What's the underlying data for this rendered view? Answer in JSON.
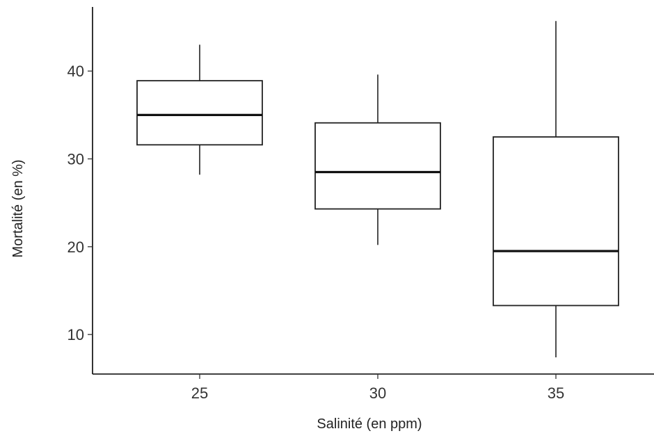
{
  "chart_data": {
    "type": "boxplot",
    "title": "",
    "xlabel": "Salinité (en ppm)",
    "ylabel": "Mortalité (en %)",
    "categories": [
      "25",
      "30",
      "35"
    ],
    "ylim": [
      5.5,
      47.3
    ],
    "yticks": [
      10,
      20,
      30,
      40
    ],
    "grid": false,
    "boxes": [
      {
        "category": "25",
        "whisker_low": 28.2,
        "q1": 31.6,
        "median": 35.0,
        "q3": 38.9,
        "whisker_high": 43.0
      },
      {
        "category": "30",
        "whisker_low": 20.2,
        "q1": 24.3,
        "median": 28.5,
        "q3": 34.1,
        "whisker_high": 39.6
      },
      {
        "category": "35",
        "whisker_low": 7.4,
        "q1": 13.3,
        "median": 19.5,
        "q3": 32.5,
        "whisker_high": 45.7
      }
    ],
    "colors": {
      "box_fill": "#ffffff",
      "box_stroke": "#222222",
      "axis": "#000000",
      "text": "#333333"
    }
  }
}
